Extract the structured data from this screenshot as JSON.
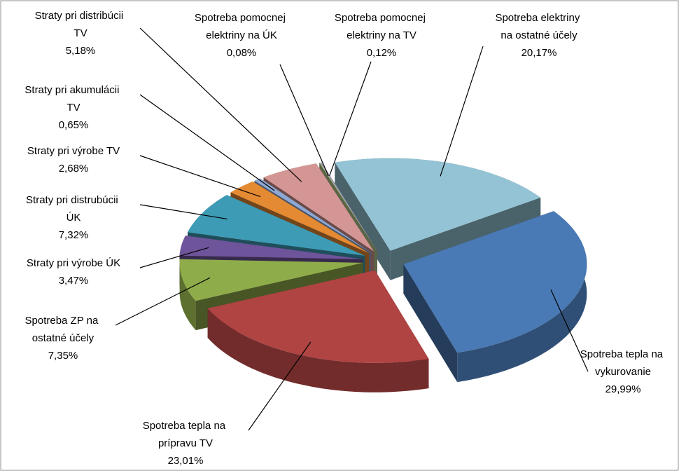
{
  "chart_data": {
    "type": "pie3d",
    "categories": [
      "Spotreba tepla na vykurovanie",
      "Spotreba tepla na prípravu TV",
      "Spotreba ZP na ostatné účely",
      "Straty pri výrobe ÚK",
      "Straty pri distrubúcii ÚK",
      "Straty pri výrobe TV",
      "Straty pri akumulácii TV",
      "Straty pri distribúcii TV",
      "Spotreba pomocnej elektriny na ÚK",
      "Spotreba pomocnej elektriny na TV",
      "Spotreba elektriny na ostatné účely"
    ],
    "values": [
      29.99,
      23.01,
      7.35,
      3.47,
      7.32,
      2.68,
      0.65,
      5.18,
      0.08,
      0.12,
      20.17
    ],
    "value_labels": [
      "29,99%",
      "23,01%",
      "7,35%",
      "3,47%",
      "7,32%",
      "2,68%",
      "0,65%",
      "5,18%",
      "0,08%",
      "0,12%",
      "20,17%"
    ],
    "colors": [
      "#4a7ab5",
      "#b04442",
      "#8fac4a",
      "#6e549a",
      "#3d9bb5",
      "#e48a33",
      "#8ea8d4",
      "#d49694",
      "#b3c78d",
      "#a49cc0",
      "#93c3d4"
    ]
  }
}
